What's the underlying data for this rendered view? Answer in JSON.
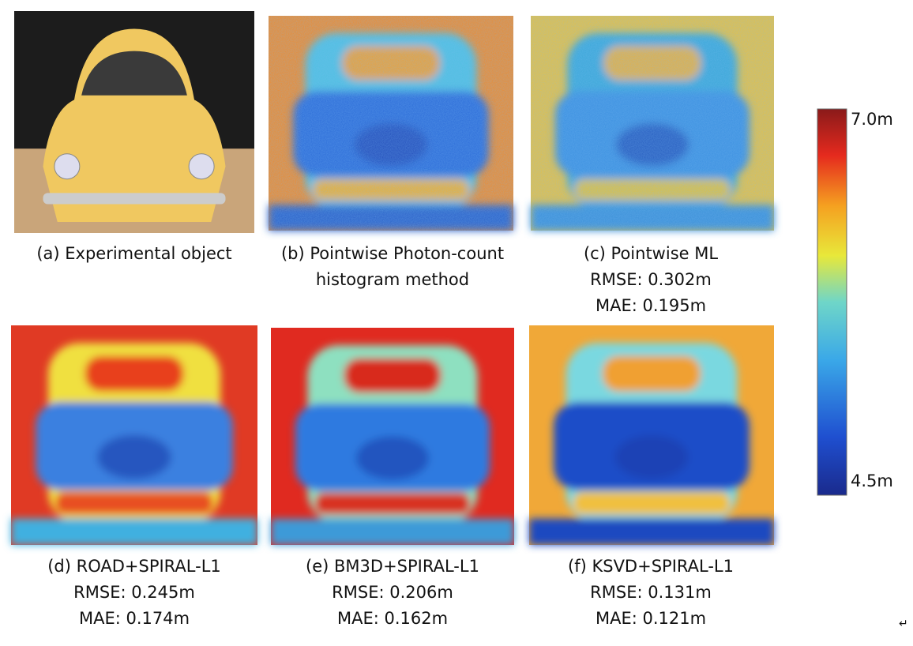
{
  "panels": [
    {
      "caption": [
        "(a) Experimental object"
      ]
    },
    {
      "caption": [
        "(b) Pointwise Photon-count",
        "histogram method"
      ]
    },
    {
      "caption": [
        "(c) Pointwise ML",
        "RMSE: 0.302m",
        "MAE: 0.195m"
      ]
    },
    {
      "caption": [
        "(d) ROAD+SPIRAL-L1",
        "RMSE: 0.245m",
        "MAE: 0.174m"
      ]
    },
    {
      "caption": [
        "(e) BM3D+SPIRAL-L1",
        "RMSE: 0.206m",
        "MAE: 0.162m"
      ]
    },
    {
      "caption": [
        "(f) KSVD+SPIRAL-L1",
        "RMSE: 0.131m",
        "MAE: 0.121m"
      ]
    }
  ],
  "colorbar": {
    "max_label": "7.0m",
    "min_label": "4.5m"
  },
  "return_mark": "↵"
}
